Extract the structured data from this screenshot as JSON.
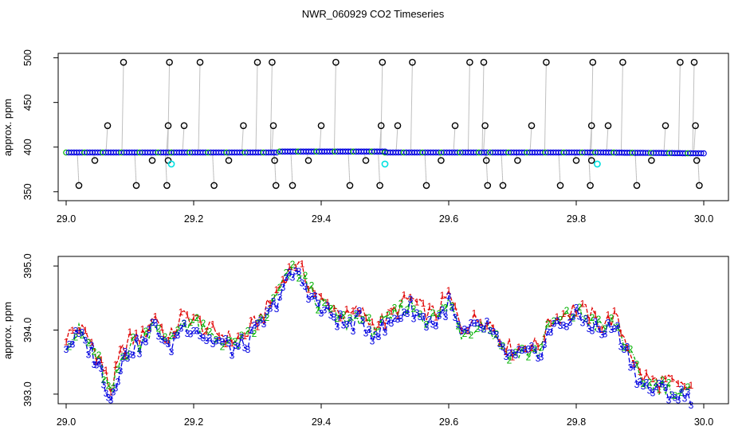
{
  "page": {
    "title": "NWR_060929  CO2 Timeseries"
  },
  "colors": {
    "series1": "#e00000",
    "series2": "#00b000",
    "series3": "#0000e0",
    "outlier": "#000000",
    "flag": "#00e0e0",
    "guide": "#808080"
  },
  "chart_data": [
    {
      "type": "scatter",
      "panel": "top",
      "title": "NWR_060929  CO2 Timeseries",
      "xlabel": "",
      "ylabel": "approx. ppm",
      "xlim": [
        29.0,
        30.0
      ],
      "ylim": [
        340,
        505
      ],
      "x_ticks": [
        "29.0",
        "29.2",
        "29.4",
        "29.6",
        "29.8",
        "30.0"
      ],
      "y_ticks": [
        "350",
        "400",
        "450",
        "500"
      ],
      "baseline_segments": [
        {
          "x": [
            29.0,
            29.165
          ],
          "y": [
            394,
            394
          ]
        },
        {
          "x": [
            29.165,
            29.33
          ],
          "y": [
            394,
            394
          ]
        },
        {
          "x": [
            29.335,
            29.5
          ],
          "y": [
            395,
            395
          ]
        },
        {
          "x": [
            29.5,
            29.66
          ],
          "y": [
            394,
            394
          ]
        },
        {
          "x": [
            29.665,
            29.83
          ],
          "y": [
            394,
            394
          ]
        },
        {
          "x": [
            29.83,
            30.0
          ],
          "y": [
            394,
            393
          ]
        }
      ],
      "outliers": [
        {
          "x": 29.02,
          "y": 357
        },
        {
          "x": 29.045,
          "y": 385
        },
        {
          "x": 29.065,
          "y": 424
        },
        {
          "x": 29.09,
          "y": 495
        },
        {
          "x": 29.11,
          "y": 357
        },
        {
          "x": 29.135,
          "y": 385
        },
        {
          "x": 29.158,
          "y": 357
        },
        {
          "x": 29.16,
          "y": 424
        },
        {
          "x": 29.162,
          "y": 495
        },
        {
          "x": 29.16,
          "y": 385
        },
        {
          "x": 29.185,
          "y": 424
        },
        {
          "x": 29.21,
          "y": 495
        },
        {
          "x": 29.232,
          "y": 357
        },
        {
          "x": 29.255,
          "y": 385
        },
        {
          "x": 29.278,
          "y": 424
        },
        {
          "x": 29.3,
          "y": 495
        },
        {
          "x": 29.323,
          "y": 495
        },
        {
          "x": 29.325,
          "y": 424
        },
        {
          "x": 29.327,
          "y": 385
        },
        {
          "x": 29.329,
          "y": 357
        },
        {
          "x": 29.355,
          "y": 357
        },
        {
          "x": 29.38,
          "y": 385
        },
        {
          "x": 29.4,
          "y": 424
        },
        {
          "x": 29.423,
          "y": 495
        },
        {
          "x": 29.445,
          "y": 357
        },
        {
          "x": 29.47,
          "y": 385
        },
        {
          "x": 29.492,
          "y": 357
        },
        {
          "x": 29.494,
          "y": 424
        },
        {
          "x": 29.496,
          "y": 495
        },
        {
          "x": 29.52,
          "y": 424
        },
        {
          "x": 29.543,
          "y": 495
        },
        {
          "x": 29.565,
          "y": 357
        },
        {
          "x": 29.588,
          "y": 385
        },
        {
          "x": 29.61,
          "y": 424
        },
        {
          "x": 29.633,
          "y": 495
        },
        {
          "x": 29.655,
          "y": 495
        },
        {
          "x": 29.657,
          "y": 424
        },
        {
          "x": 29.659,
          "y": 385
        },
        {
          "x": 29.661,
          "y": 357
        },
        {
          "x": 29.685,
          "y": 357
        },
        {
          "x": 29.708,
          "y": 385
        },
        {
          "x": 29.73,
          "y": 424
        },
        {
          "x": 29.753,
          "y": 495
        },
        {
          "x": 29.775,
          "y": 357
        },
        {
          "x": 29.8,
          "y": 385
        },
        {
          "x": 29.822,
          "y": 357
        },
        {
          "x": 29.824,
          "y": 424
        },
        {
          "x": 29.826,
          "y": 495
        },
        {
          "x": 29.824,
          "y": 385
        },
        {
          "x": 29.85,
          "y": 424
        },
        {
          "x": 29.873,
          "y": 495
        },
        {
          "x": 29.895,
          "y": 357
        },
        {
          "x": 29.918,
          "y": 385
        },
        {
          "x": 29.94,
          "y": 424
        },
        {
          "x": 29.963,
          "y": 495
        },
        {
          "x": 29.985,
          "y": 495
        },
        {
          "x": 29.987,
          "y": 424
        },
        {
          "x": 29.989,
          "y": 385
        },
        {
          "x": 29.993,
          "y": 357
        }
      ],
      "flags": [
        {
          "x": 29.165,
          "y": 381
        },
        {
          "x": 29.5,
          "y": 381
        },
        {
          "x": 29.833,
          "y": 381
        }
      ]
    },
    {
      "type": "line",
      "panel": "bottom",
      "xlabel": "",
      "ylabel": "approx. ppm",
      "xlim": [
        29.0,
        30.0
      ],
      "ylim": [
        392.85,
        395.15
      ],
      "x_ticks": [
        "29.0",
        "29.2",
        "29.4",
        "29.6",
        "29.8",
        "30.0"
      ],
      "y_ticks": [
        "393.0",
        "394.0",
        "395.0"
      ],
      "series": [
        {
          "marker": "1",
          "color": "#e00000",
          "offset": 0.05
        },
        {
          "marker": "2",
          "color": "#00b000",
          "offset": -0.03
        },
        {
          "marker": "3",
          "color": "#0000e0",
          "offset": -0.09
        }
      ],
      "x": [
        29.0,
        29.02,
        29.04,
        29.055,
        29.07,
        29.085,
        29.1,
        29.12,
        29.14,
        29.16,
        29.18,
        29.2,
        29.22,
        29.24,
        29.26,
        29.28,
        29.3,
        29.32,
        29.34,
        29.36,
        29.38,
        29.4,
        29.42,
        29.44,
        29.46,
        29.48,
        29.5,
        29.52,
        29.54,
        29.56,
        29.58,
        29.6,
        29.62,
        29.64,
        29.66,
        29.68,
        29.7,
        29.72,
        29.74,
        29.76,
        29.78,
        29.8,
        29.82,
        29.84,
        29.86,
        29.88,
        29.9,
        29.92,
        29.94,
        29.96,
        29.98
      ],
      "y": [
        393.85,
        394.0,
        393.75,
        393.45,
        393.0,
        393.55,
        393.8,
        393.85,
        394.2,
        393.75,
        394.15,
        394.15,
        393.95,
        393.9,
        393.8,
        393.85,
        394.1,
        394.35,
        394.75,
        395.0,
        394.7,
        394.4,
        394.3,
        394.15,
        394.25,
        394.05,
        394.1,
        394.3,
        394.45,
        394.25,
        394.2,
        394.5,
        394.0,
        394.1,
        394.15,
        393.8,
        393.65,
        393.7,
        393.7,
        394.1,
        394.2,
        394.3,
        394.2,
        394.05,
        394.15,
        393.75,
        393.25,
        393.15,
        393.15,
        393.05,
        393.05
      ]
    }
  ]
}
